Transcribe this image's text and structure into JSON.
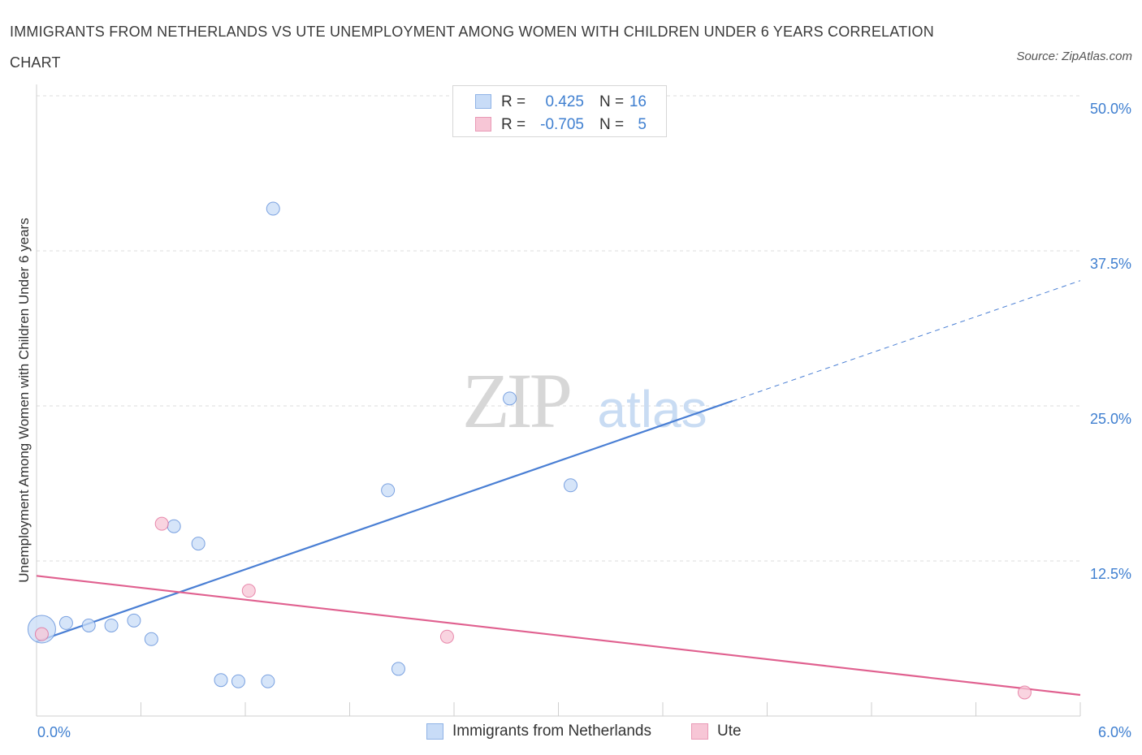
{
  "chart_data": {
    "type": "scatter",
    "title": "IMMIGRANTS FROM NETHERLANDS VS UTE UNEMPLOYMENT AMONG WOMEN WITH CHILDREN UNDER 6 YEARS CORRELATION CHART",
    "source": "Source: ZipAtlas.com",
    "ylabel": "Unemployment Among Women with Children Under 6 years",
    "xlabel": "",
    "xlim": [
      0.0,
      6.0
    ],
    "ylim": [
      0.0,
      50.0
    ],
    "y_ticks": [
      {
        "value": 50.0,
        "label": "50.0%"
      },
      {
        "value": 37.5,
        "label": "37.5%"
      },
      {
        "value": 25.0,
        "label": "25.0%"
      },
      {
        "value": 12.5,
        "label": "12.5%"
      }
    ],
    "x_tick_labels": {
      "min": "0.0%",
      "max": "6.0%"
    },
    "watermark": "ZIPatlas",
    "series": [
      {
        "name": "Immigrants from Netherlands",
        "color": "#4a7fd4",
        "fill": "#c8dcf7",
        "R": "0.425",
        "N": "16",
        "points": [
          {
            "x": 0.03,
            "y": 7.0,
            "big": true
          },
          {
            "x": 0.17,
            "y": 7.5
          },
          {
            "x": 0.3,
            "y": 7.3
          },
          {
            "x": 0.43,
            "y": 7.3
          },
          {
            "x": 0.56,
            "y": 7.7
          },
          {
            "x": 0.66,
            "y": 6.2
          },
          {
            "x": 0.79,
            "y": 15.3
          },
          {
            "x": 0.93,
            "y": 13.9
          },
          {
            "x": 1.06,
            "y": 2.9
          },
          {
            "x": 1.16,
            "y": 2.8
          },
          {
            "x": 1.33,
            "y": 2.8
          },
          {
            "x": 1.36,
            "y": 40.9
          },
          {
            "x": 2.02,
            "y": 18.2
          },
          {
            "x": 2.08,
            "y": 3.8
          },
          {
            "x": 2.72,
            "y": 25.6
          },
          {
            "x": 3.07,
            "y": 18.6
          }
        ],
        "trend": {
          "x0": 0.0,
          "y0": 6.0,
          "x1": 4.0,
          "y1": 25.4,
          "x_dash_end": 6.0,
          "y_dash_end": 35.1
        }
      },
      {
        "name": "Ute",
        "color": "#e0608f",
        "fill": "#f7c6d6",
        "R": "-0.705",
        "N": "5",
        "points": [
          {
            "x": 0.03,
            "y": 6.6
          },
          {
            "x": 0.72,
            "y": 15.5
          },
          {
            "x": 1.22,
            "y": 10.1
          },
          {
            "x": 2.36,
            "y": 6.4
          },
          {
            "x": 5.68,
            "y": 1.9
          }
        ],
        "trend": {
          "x0": 0.0,
          "y0": 11.3,
          "x1": 6.0,
          "y1": 1.7
        }
      }
    ],
    "legend": {
      "r_label": "R =",
      "n_label": "N ="
    }
  }
}
